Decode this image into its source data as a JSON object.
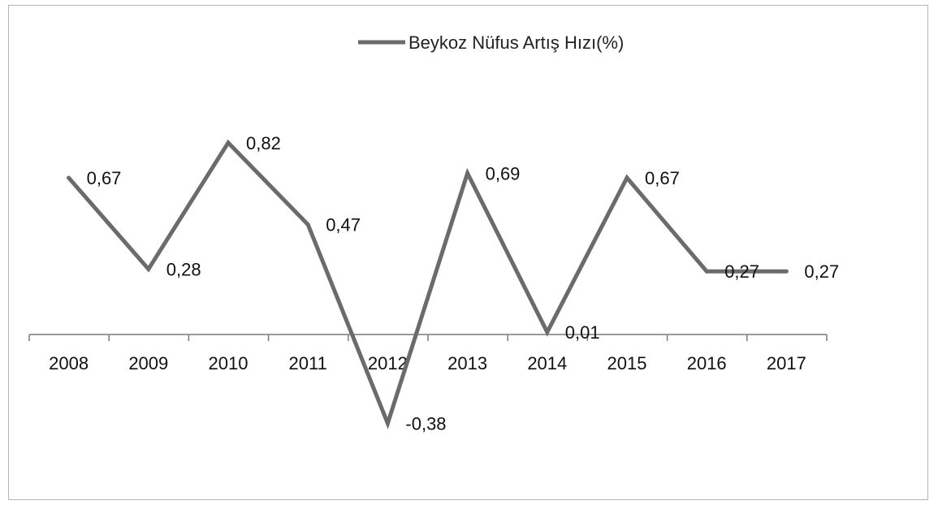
{
  "chart_data": {
    "type": "line",
    "title": "",
    "xlabel": "",
    "ylabel": "",
    "categories": [
      "2008",
      "2009",
      "2010",
      "2011",
      "2012",
      "2013",
      "2014",
      "2015",
      "2016",
      "2017"
    ],
    "series": [
      {
        "name": "Beykoz Nüfus Artış Hızı(%)",
        "values": [
          0.67,
          0.28,
          0.82,
          0.47,
          -0.38,
          0.69,
          0.01,
          0.67,
          0.27,
          0.27
        ],
        "data_labels": [
          "0,67",
          "0,28",
          "0,82",
          "0,47",
          "-0,38",
          "0,69",
          "0,01",
          "0,67",
          "0,27",
          "0,27"
        ],
        "color": "#6b6b6b"
      }
    ],
    "ylim": [
      -0.4,
      1.0
    ],
    "grid": false,
    "legend_position": "top-center"
  }
}
